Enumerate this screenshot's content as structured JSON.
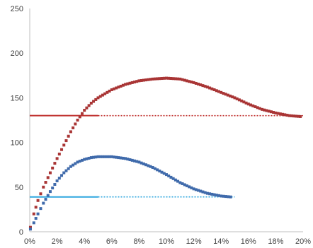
{
  "chart_data": {
    "type": "scatter",
    "title": "",
    "xlabel": "",
    "ylabel": "",
    "xlim": [
      0,
      20
    ],
    "ylim": [
      0,
      250
    ],
    "grid": false,
    "legend": "none",
    "x_ticks": [
      {
        "value": 0,
        "label": "0%"
      },
      {
        "value": 2,
        "label": "2%"
      },
      {
        "value": 4,
        "label": "4%"
      },
      {
        "value": 6,
        "label": "6%"
      },
      {
        "value": 8,
        "label": "8%"
      },
      {
        "value": 10,
        "label": "10%"
      },
      {
        "value": 12,
        "label": "12%"
      },
      {
        "value": 14,
        "label": "14%"
      },
      {
        "value": 16,
        "label": "16%"
      },
      {
        "value": 18,
        "label": "18%"
      },
      {
        "value": 20,
        "label": "20%"
      }
    ],
    "y_ticks": [
      {
        "value": 0,
        "label": "0"
      },
      {
        "value": 50,
        "label": "50"
      },
      {
        "value": 100,
        "label": "100"
      },
      {
        "value": 150,
        "label": "150"
      },
      {
        "value": 200,
        "label": "200"
      },
      {
        "value": 250,
        "label": "250"
      }
    ],
    "series": [
      {
        "color": "#a93535",
        "marker": "square",
        "points": [
          {
            "x": 0.05,
            "y": 5
          },
          {
            "x": 0.3,
            "y": 20
          },
          {
            "x": 0.6,
            "y": 35
          },
          {
            "x": 1.0,
            "y": 50
          },
          {
            "x": 1.5,
            "y": 66
          },
          {
            "x": 2.0,
            "y": 82
          },
          {
            "x": 2.5,
            "y": 97
          },
          {
            "x": 3.0,
            "y": 112
          },
          {
            "x": 3.5,
            "y": 125
          },
          {
            "x": 4.0,
            "y": 136
          },
          {
            "x": 4.5,
            "y": 144
          },
          {
            "x": 5.0,
            "y": 150
          },
          {
            "x": 6.0,
            "y": 159
          },
          {
            "x": 7.0,
            "y": 165
          },
          {
            "x": 8.0,
            "y": 169
          },
          {
            "x": 9.0,
            "y": 171
          },
          {
            "x": 10.0,
            "y": 172
          },
          {
            "x": 11.0,
            "y": 171
          },
          {
            "x": 12.0,
            "y": 167
          },
          {
            "x": 13.0,
            "y": 162
          },
          {
            "x": 14.0,
            "y": 156
          },
          {
            "x": 15.0,
            "y": 150
          },
          {
            "x": 16.0,
            "y": 143
          },
          {
            "x": 17.0,
            "y": 137
          },
          {
            "x": 18.0,
            "y": 133
          },
          {
            "x": 19.0,
            "y": 130
          },
          {
            "x": 19.8,
            "y": 129
          }
        ]
      },
      {
        "color": "#3f6aab",
        "marker": "square",
        "points": [
          {
            "x": 0.05,
            "y": 3
          },
          {
            "x": 0.3,
            "y": 10
          },
          {
            "x": 0.6,
            "y": 20
          },
          {
            "x": 1.0,
            "y": 32
          },
          {
            "x": 1.5,
            "y": 45
          },
          {
            "x": 2.0,
            "y": 57
          },
          {
            "x": 2.5,
            "y": 66
          },
          {
            "x": 3.0,
            "y": 73
          },
          {
            "x": 3.5,
            "y": 78
          },
          {
            "x": 4.0,
            "y": 81
          },
          {
            "x": 4.5,
            "y": 83
          },
          {
            "x": 5.0,
            "y": 84
          },
          {
            "x": 6.0,
            "y": 84
          },
          {
            "x": 7.0,
            "y": 82
          },
          {
            "x": 8.0,
            "y": 78
          },
          {
            "x": 9.0,
            "y": 72
          },
          {
            "x": 10.0,
            "y": 64
          },
          {
            "x": 11.0,
            "y": 55
          },
          {
            "x": 12.0,
            "y": 48
          },
          {
            "x": 13.0,
            "y": 43
          },
          {
            "x": 14.0,
            "y": 40
          },
          {
            "x": 14.7,
            "y": 39
          }
        ]
      }
    ],
    "reference_lines": [
      {
        "y": 130,
        "x_start": 0,
        "x_solid_end": 5,
        "x_end": 20,
        "color": "#c0312f"
      },
      {
        "y": 39,
        "x_start": 0,
        "x_solid_end": 5,
        "x_end": 15,
        "color": "#2fa6df"
      }
    ]
  }
}
